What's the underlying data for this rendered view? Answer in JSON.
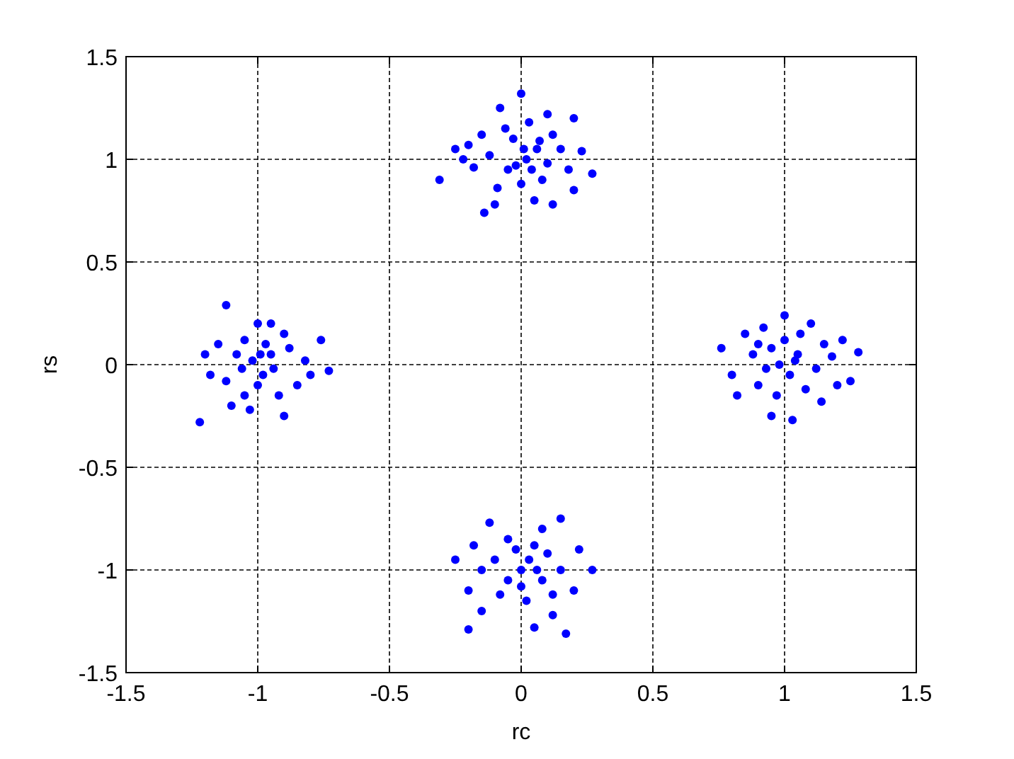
{
  "chart_data": {
    "type": "scatter",
    "xlabel": "rc",
    "ylabel": "rs",
    "xlim": [
      -1.5,
      1.5
    ],
    "ylim": [
      -1.5,
      1.5
    ],
    "xticks": [
      -1.5,
      -1,
      -0.5,
      0,
      0.5,
      1,
      1.5
    ],
    "yticks": [
      -1.5,
      -1,
      -0.5,
      0,
      0.5,
      1,
      1.5
    ],
    "grid": true,
    "marker": "circle",
    "series": [
      {
        "color": "#0000ff",
        "x": [
          0,
          -0.31,
          0.27,
          -0.2,
          0.2,
          0.1,
          -0.08,
          0.05,
          -0.1,
          -0.14,
          0.12,
          0.2,
          -0.05,
          0.02,
          0.06,
          -0.03,
          0.1,
          -0.12,
          0.15,
          -0.18,
          0,
          0.08,
          -0.06,
          0.03,
          -0.15,
          0.18,
          -0.22,
          0.12,
          -0.09,
          0.01,
          0.04,
          -0.02,
          0.23,
          -0.25,
          0.07,
          -1.22,
          -1.12,
          -0.73,
          -0.76,
          -0.9,
          -1,
          -0.95,
          -1.15,
          -1.18,
          -1.1,
          -1.05,
          -0.98,
          -1.02,
          -0.95,
          -0.88,
          -0.85,
          -1.08,
          -0.92,
          -1,
          -0.97,
          -1.05,
          -0.82,
          -1.12,
          -0.9,
          -1.03,
          -0.8,
          -1.2,
          -0.94,
          -1.06,
          -0.99,
          0.76,
          1.28,
          1,
          1.03,
          0.95,
          1.2,
          1.25,
          0.8,
          0.85,
          1.1,
          0.92,
          1.15,
          0.9,
          1.05,
          0.98,
          1.02,
          0.95,
          1.08,
          0.88,
          1.12,
          0.97,
          1,
          1.18,
          0.82,
          1.22,
          0.93,
          1.06,
          1.04,
          0.9,
          1.14,
          -0.2,
          0.17,
          0.27,
          0.15,
          -0.12,
          -0.25,
          -0.2,
          -0.15,
          0.05,
          0.12,
          0.2,
          0.22,
          0.08,
          -0.05,
          0,
          0.03,
          -0.05,
          0.08,
          -0.1,
          0.1,
          -0.08,
          0.02,
          0.15,
          -0.15,
          0.05,
          -0.02,
          0.12,
          -0.18,
          0,
          0.06
        ],
        "values": [
          1.32,
          0.9,
          0.93,
          1.07,
          1.2,
          1.22,
          1.25,
          0.8,
          0.78,
          0.74,
          0.78,
          0.85,
          0.95,
          1,
          1.05,
          1.1,
          0.98,
          1.02,
          1.05,
          0.96,
          0.88,
          0.9,
          1.15,
          1.18,
          1.12,
          0.95,
          1,
          1.12,
          0.86,
          1.05,
          0.95,
          0.97,
          1.04,
          1.05,
          1.09,
          -0.28,
          0.29,
          -0.03,
          0.12,
          -0.25,
          0.2,
          0.2,
          0.1,
          -0.05,
          -0.2,
          -0.15,
          -0.05,
          0.02,
          0.05,
          0.08,
          -0.1,
          0.05,
          -0.15,
          -0.1,
          0.1,
          0.12,
          0.02,
          -0.08,
          0.15,
          -0.22,
          -0.05,
          0.05,
          -0.02,
          -0.02,
          0.05,
          0.08,
          0.06,
          0.24,
          -0.27,
          -0.25,
          -0.1,
          -0.08,
          -0.05,
          0.15,
          0.2,
          0.18,
          0.1,
          -0.1,
          0.05,
          0,
          -0.05,
          0.08,
          -0.12,
          0.05,
          -0.02,
          -0.15,
          0.12,
          0.04,
          -0.15,
          0.12,
          -0.02,
          0.15,
          0.02,
          0.1,
          -0.18,
          -1.29,
          -1.31,
          -1,
          -0.75,
          -0.77,
          -0.95,
          -1.1,
          -1.2,
          -1.28,
          -1.22,
          -1.1,
          -0.9,
          -0.8,
          -0.85,
          -1,
          -0.95,
          -1.05,
          -1.05,
          -0.95,
          -0.92,
          -1.12,
          -1.15,
          -1,
          -1,
          -0.88,
          -0.9,
          -1.12,
          -0.88,
          -1.08,
          -1
        ]
      }
    ]
  }
}
